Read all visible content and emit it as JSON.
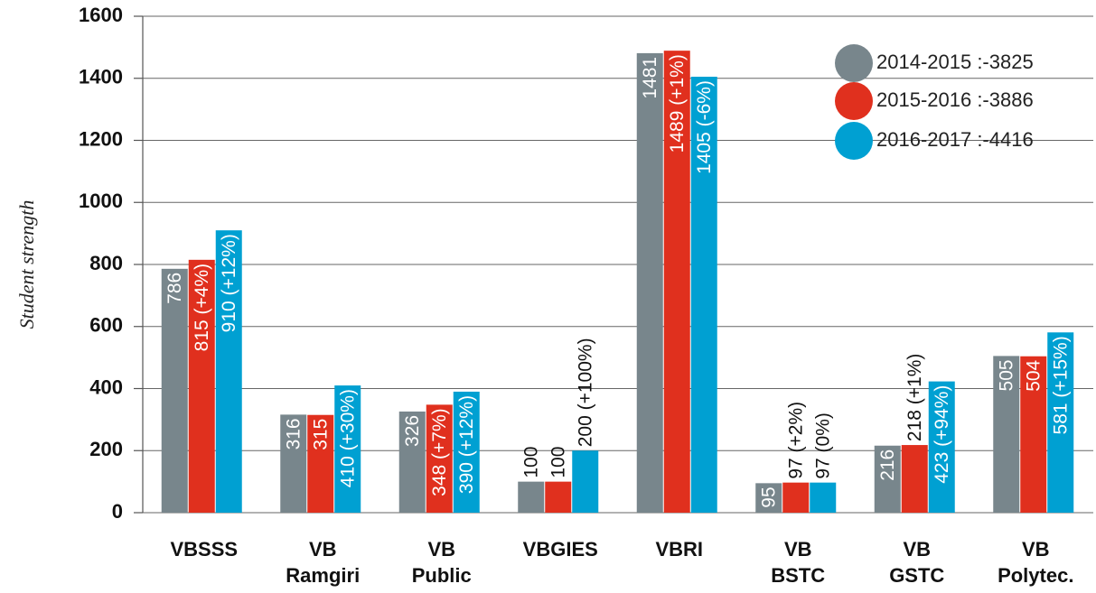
{
  "chart_data": {
    "type": "bar",
    "y_label": "Student strength",
    "categories": [
      [
        "VBSSS"
      ],
      [
        "VB",
        "Ramgiri"
      ],
      [
        "VB",
        "Public"
      ],
      [
        "VBGIES"
      ],
      [
        "VBRI"
      ],
      [
        "VB",
        "BSTC"
      ],
      [
        "VB",
        "GSTC"
      ],
      [
        "VB",
        "Polytec."
      ]
    ],
    "series": [
      {
        "name": "2014-2015 :-3825",
        "color": "#78868c",
        "values": [
          786,
          316,
          326,
          100,
          1481,
          95,
          216,
          505
        ]
      },
      {
        "name": "2015-2016 :-3886",
        "color": "#e0301e",
        "values": [
          815,
          315,
          348,
          100,
          1489,
          97,
          218,
          504
        ],
        "value_labels": [
          "815 (+4%)",
          "315",
          "348 (+7%)",
          "100",
          "1489 (+1%)",
          "97 (+2%)",
          "218 (+1%)",
          "504"
        ]
      },
      {
        "name": "2016-2017 :-4416",
        "color": "#00a0d2",
        "values": [
          910,
          410,
          390,
          200,
          1405,
          97,
          423,
          581
        ],
        "value_labels": [
          "910 (+12%)",
          "410 (+30%)",
          "390 (+12%)",
          "200 (+100%)",
          "1405 (-6%)",
          "97 (0%)",
          "423 (+94%)",
          "581 (+15%)"
        ]
      }
    ],
    "ylim": [
      0,
      1600
    ],
    "yticks": [
      0,
      200,
      400,
      600,
      800,
      1000,
      1200,
      1400,
      1600
    ],
    "grid": true,
    "legend": "top-right"
  }
}
